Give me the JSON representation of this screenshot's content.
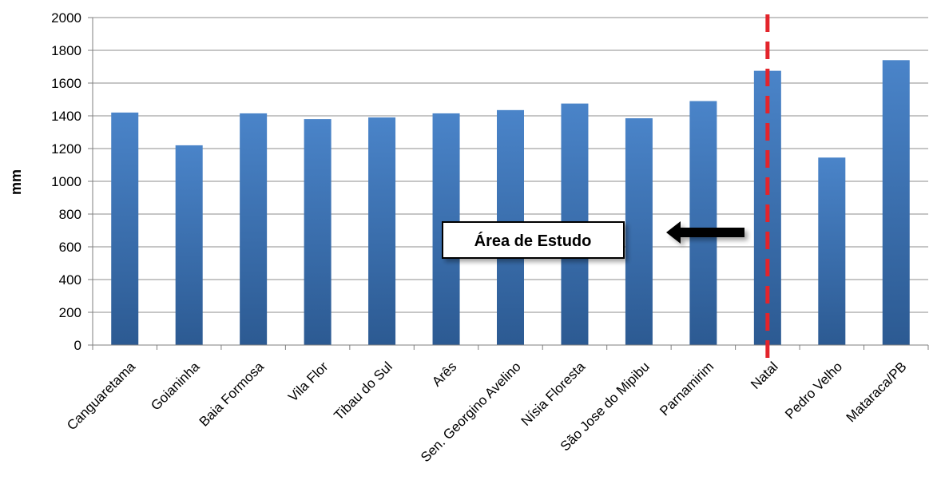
{
  "chart_data": {
    "type": "bar",
    "categories": [
      "Canguaretama",
      "Goianinha",
      "Baia Formosa",
      "Vila Flor",
      "Tibau do Sul",
      "Arês",
      "Sen. Georgino Avelino",
      "Nísia Floresta",
      "São Jose do Mipibu",
      "Parnamirim",
      "Natal",
      "Pedro Velho",
      "Mataraca/PB"
    ],
    "values": [
      1420,
      1220,
      1415,
      1380,
      1390,
      1415,
      1435,
      1475,
      1385,
      1490,
      1675,
      1145,
      1740
    ],
    "xlabel": "",
    "ylabel": "mm",
    "ylim": [
      0,
      2000
    ],
    "yticks": [
      0,
      200,
      400,
      600,
      800,
      1000,
      1200,
      1400,
      1600,
      1800,
      2000
    ],
    "grid": true,
    "legend": "none",
    "colors": {
      "bar_top": "#4a84c9",
      "bar_bottom": "#2c5a92",
      "grid": "#8c8c8c",
      "marker_line": "#e3242b",
      "arrow": "#000000"
    },
    "annotations": [
      {
        "text": "Área de Estudo",
        "kind": "boxed-label-with-arrow"
      },
      {
        "kind": "dashed-vertical-line",
        "at_category": "Natal"
      }
    ]
  }
}
